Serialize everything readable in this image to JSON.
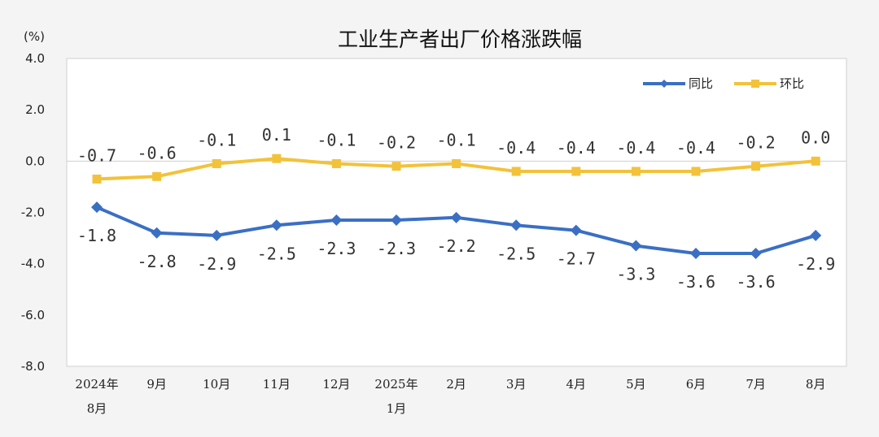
{
  "chart_data": {
    "type": "line",
    "title": "工业生产者出厂价格涨跌幅",
    "unit_label": "(%)",
    "categories": [
      [
        "2024年",
        "8月"
      ],
      [
        "9月"
      ],
      [
        "10月"
      ],
      [
        "11月"
      ],
      [
        "12月"
      ],
      [
        "2025年",
        "1月"
      ],
      [
        "2月"
      ],
      [
        "3月"
      ],
      [
        "4月"
      ],
      [
        "5月"
      ],
      [
        "6月"
      ],
      [
        "7月"
      ],
      [
        "8月"
      ]
    ],
    "ylim": [
      -8.0,
      4.0
    ],
    "yticks": [
      "4.0",
      "2.0",
      "0.0",
      "-2.0",
      "-4.0",
      "-6.0",
      "-8.0"
    ],
    "ytick_values": [
      4,
      2,
      0,
      -2,
      -4,
      -6,
      -8
    ],
    "grid": false,
    "legend_position": "top-right",
    "series": [
      {
        "name": "同比",
        "color": "#3a6fc4",
        "marker": "diamond",
        "values": [
          -1.8,
          -2.8,
          -2.9,
          -2.5,
          -2.3,
          -2.3,
          -2.2,
          -2.5,
          -2.7,
          -3.3,
          -3.6,
          -3.6,
          -2.9
        ],
        "labels": [
          "-1.8",
          "-2.8",
          "-2.9",
          "-2.5",
          "-2.3",
          "-2.3",
          "-2.2",
          "-2.5",
          "-2.7",
          "-3.3",
          "-3.6",
          "-3.6",
          "-2.9"
        ]
      },
      {
        "name": "环比",
        "color": "#f2c23a",
        "marker": "square",
        "values": [
          -0.7,
          -0.6,
          -0.1,
          0.1,
          -0.1,
          -0.2,
          -0.1,
          -0.4,
          -0.4,
          -0.4,
          -0.4,
          -0.2,
          0.0
        ],
        "labels": [
          "-0.7",
          "-0.6",
          "-0.1",
          "0.1",
          "-0.1",
          "-0.2",
          "-0.1",
          "-0.4",
          "-0.4",
          "-0.4",
          "-0.4",
          "-0.2",
          "0.0"
        ]
      }
    ]
  }
}
